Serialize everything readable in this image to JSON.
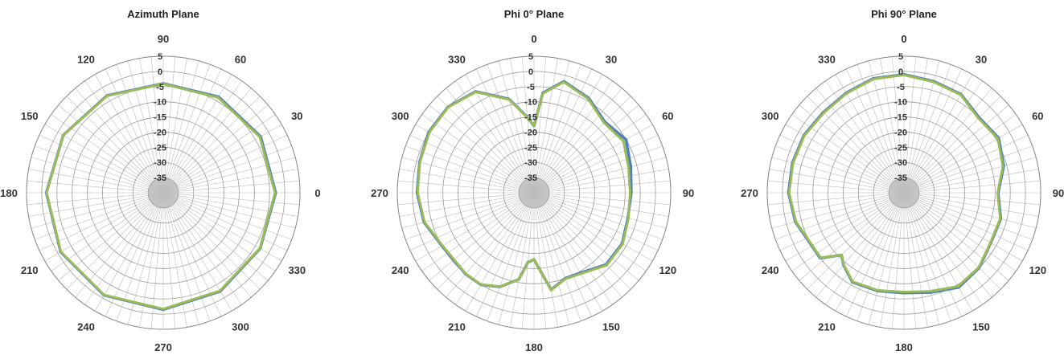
{
  "chart_data": [
    {
      "type": "polar",
      "title": "Azimuth Plane",
      "r_ticks": [
        "5",
        "0",
        "-5",
        "-10",
        "-15",
        "-20",
        "-25",
        "-30",
        "-35"
      ],
      "rlim": [
        -40,
        5
      ],
      "angle_labels": [
        "0",
        "30",
        "60",
        "90",
        "120",
        "150",
        "180",
        "210",
        "240",
        "270",
        "300",
        "330"
      ],
      "angle_direction": "counterclockwise",
      "zero_angle_position": "right",
      "grid": true,
      "legend": "none",
      "series": [
        {
          "color": "#4f81bd",
          "theta": [
            0,
            30,
            60,
            90,
            120,
            150,
            180,
            210,
            240,
            270,
            300,
            330,
            360
          ],
          "r": [
            -3.0,
            -3.0,
            -3.5,
            -4.0,
            -3.0,
            -2.0,
            -1.5,
            -1.0,
            -1.0,
            -1.5,
            -2.5,
            -3.2,
            -3.0
          ]
        },
        {
          "color": "#9bbb59",
          "theta": [
            0,
            30,
            60,
            90,
            120,
            150,
            180,
            210,
            240,
            270,
            300,
            330,
            360
          ],
          "r": [
            -3.2,
            -3.3,
            -3.8,
            -4.1,
            -3.1,
            -2.0,
            -1.6,
            -1.1,
            -1.1,
            -1.7,
            -2.7,
            -3.3,
            -3.2
          ]
        }
      ]
    },
    {
      "type": "polar",
      "title": "Phi 0° Plane",
      "r_ticks": [
        "5",
        "0",
        "-5",
        "-10",
        "-15",
        "-20",
        "-25",
        "-30",
        "-35"
      ],
      "rlim": [
        -40,
        5
      ],
      "angle_labels": [
        "0",
        "30",
        "60",
        "90",
        "120",
        "150",
        "180",
        "210",
        "240",
        "270",
        "300",
        "330"
      ],
      "angle_direction": "clockwise",
      "zero_angle_position": "top",
      "grid": true,
      "legend": "none",
      "series": [
        {
          "color": "#4f81bd",
          "theta": [
            0,
            5,
            15,
            30,
            45,
            60,
            75,
            90,
            105,
            120,
            135,
            150,
            160,
            170,
            180,
            185,
            190,
            200,
            210,
            220,
            240,
            255,
            270,
            285,
            300,
            315,
            330,
            345,
            355,
            360
          ],
          "r": [
            -18.0,
            -7.0,
            -2.0,
            -4.0,
            -7.0,
            -5.0,
            -7.0,
            -8.0,
            -8.0,
            -6.5,
            -6.5,
            -9.5,
            -10.0,
            -7.5,
            -18.0,
            -17.0,
            -11.0,
            -7.0,
            -5.0,
            -5.0,
            -5.0,
            -2.5,
            -1.5,
            -1.0,
            0.0,
            0.0,
            -1.5,
            -8.0,
            -15.0,
            -18.0
          ]
        },
        {
          "color": "#9bbb59",
          "theta": [
            0,
            5,
            15,
            30,
            45,
            60,
            75,
            90,
            105,
            120,
            135,
            150,
            160,
            170,
            180,
            185,
            190,
            200,
            210,
            220,
            240,
            255,
            270,
            285,
            300,
            315,
            330,
            345,
            355,
            360
          ],
          "r": [
            -18.0,
            -7.2,
            -2.2,
            -4.3,
            -7.4,
            -6.0,
            -7.8,
            -8.4,
            -7.8,
            -6.3,
            -6.2,
            -9.2,
            -9.8,
            -7.4,
            -18.0,
            -17.0,
            -11.0,
            -7.1,
            -5.1,
            -5.1,
            -5.2,
            -2.7,
            -1.7,
            -1.1,
            -0.2,
            -0.1,
            -1.6,
            -8.2,
            -15.0,
            -18.0
          ]
        }
      ]
    },
    {
      "type": "polar",
      "title": "Phi 90° Plane",
      "r_ticks": [
        "5",
        "0",
        "-5",
        "-10",
        "-15",
        "-20",
        "-25",
        "-30",
        "-35"
      ],
      "rlim": [
        -40,
        5
      ],
      "angle_labels": [
        "0",
        "30",
        "60",
        "90",
        "120",
        "150",
        "180",
        "210",
        "240",
        "270",
        "300",
        "330"
      ],
      "angle_direction": "clockwise",
      "zero_angle_position": "top",
      "grid": true,
      "legend": "none",
      "series": [
        {
          "color": "#4f81bd",
          "theta": [
            0,
            15,
            30,
            45,
            60,
            75,
            90,
            105,
            120,
            135,
            150,
            165,
            180,
            195,
            210,
            220,
            225,
            232,
            240,
            255,
            270,
            285,
            300,
            315,
            330,
            345,
            360
          ],
          "r": [
            -1.0,
            -2.0,
            -2.5,
            -5.0,
            -4.0,
            -6.0,
            -9.0,
            -7.0,
            -7.0,
            -5.0,
            -4.0,
            -6.0,
            -7.0,
            -6.5,
            -6.0,
            -9.0,
            -11.0,
            -5.0,
            -5.0,
            -3.0,
            -2.0,
            -2.0,
            -2.0,
            -2.5,
            -2.0,
            -1.0,
            -1.0
          ]
        },
        {
          "color": "#9bbb59",
          "theta": [
            0,
            15,
            30,
            45,
            60,
            75,
            90,
            105,
            120,
            135,
            150,
            165,
            180,
            195,
            210,
            220,
            225,
            232,
            240,
            255,
            270,
            285,
            300,
            315,
            330,
            345,
            360
          ],
          "r": [
            -1.2,
            -2.2,
            -2.7,
            -5.3,
            -4.3,
            -6.3,
            -9.2,
            -7.2,
            -7.1,
            -5.2,
            -4.4,
            -6.4,
            -7.3,
            -6.7,
            -6.2,
            -9.1,
            -11.0,
            -5.2,
            -5.2,
            -3.2,
            -2.2,
            -2.2,
            -2.2,
            -2.7,
            -2.2,
            -1.2,
            -1.2
          ]
        }
      ]
    }
  ]
}
